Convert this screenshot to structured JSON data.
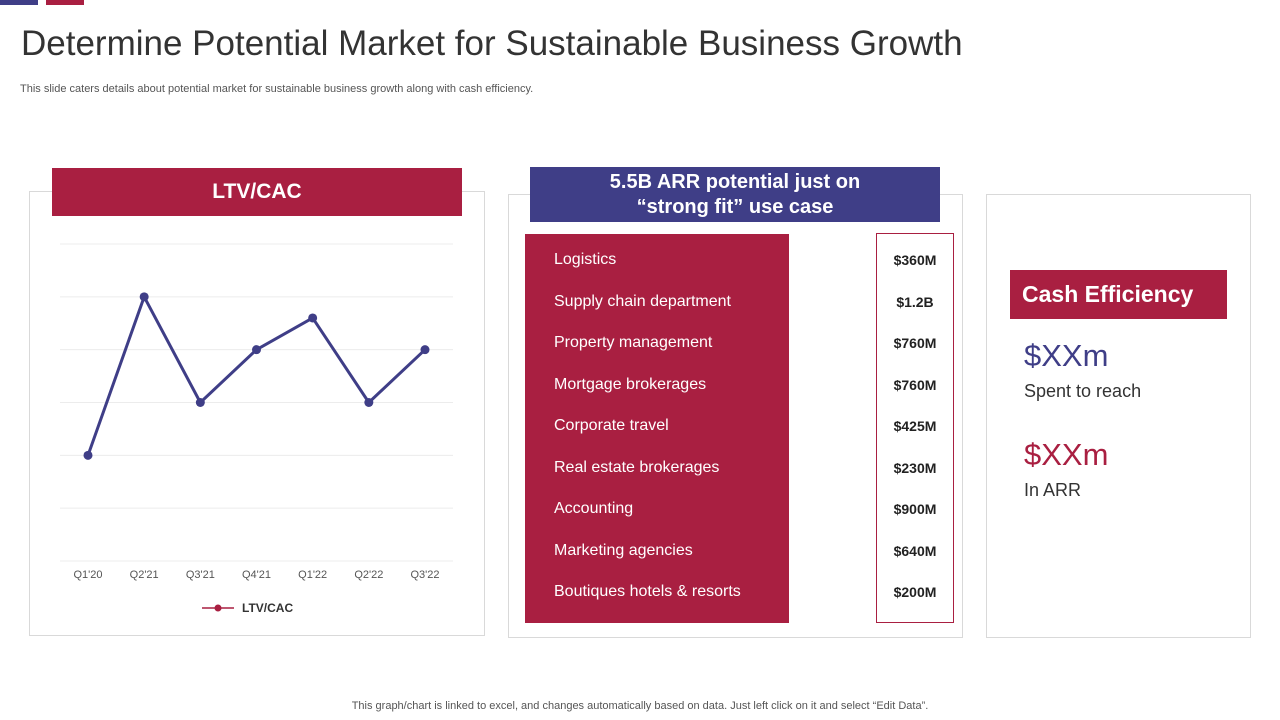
{
  "page": {
    "title": "Determine Potential Market for Sustainable Business Growth",
    "subtitle": "This slide caters details about potential market for sustainable business growth along with cash efficiency.",
    "footer": "This graph/chart is linked to excel,  and changes automatically based on data. Just left click on it and select “Edit Data”.",
    "colors": {
      "crimson": "#a91f41",
      "navy": "#3f3e87",
      "grid": "#ececec"
    }
  },
  "ltv_panel": {
    "header": "LTV/CAC"
  },
  "chart_data": {
    "type": "line",
    "title": "LTV/CAC",
    "categories": [
      "Q1'20",
      "Q2'21",
      "Q3'21",
      "Q4'21",
      "Q1'22",
      "Q2'22",
      "Q3'22"
    ],
    "series": [
      {
        "name": "LTV/CAC",
        "values": [
          2,
          5,
          3,
          4,
          4.6,
          3,
          4
        ]
      }
    ],
    "ylim": [
      0,
      6
    ],
    "grid": true,
    "legend": "bottom",
    "xlabel": "",
    "ylabel": ""
  },
  "arr_panel": {
    "header_line1": "5.5B ARR potential just on",
    "header_line2": "“strong fit” use case",
    "rows": [
      {
        "category": "Logistics",
        "value": "$360M"
      },
      {
        "category": "Supply chain department",
        "value": "$1.2B"
      },
      {
        "category": "Property management",
        "value": "$760M"
      },
      {
        "category": "Mortgage brokerages",
        "value": "$760M"
      },
      {
        "category": "Corporate travel",
        "value": "$425M"
      },
      {
        "category": "Real estate brokerages",
        "value": "$230M"
      },
      {
        "category": "Accounting",
        "value": "$900M"
      },
      {
        "category": "Marketing agencies",
        "value": "$640M"
      },
      {
        "category": "Boutiques hotels & resorts",
        "value": "$200M"
      }
    ]
  },
  "cash_panel": {
    "header": "Cash Efficiency",
    "spent_value": "$XXm",
    "spent_caption": "Spent to reach",
    "arr_value": "$XXm",
    "arr_caption": "In ARR"
  }
}
